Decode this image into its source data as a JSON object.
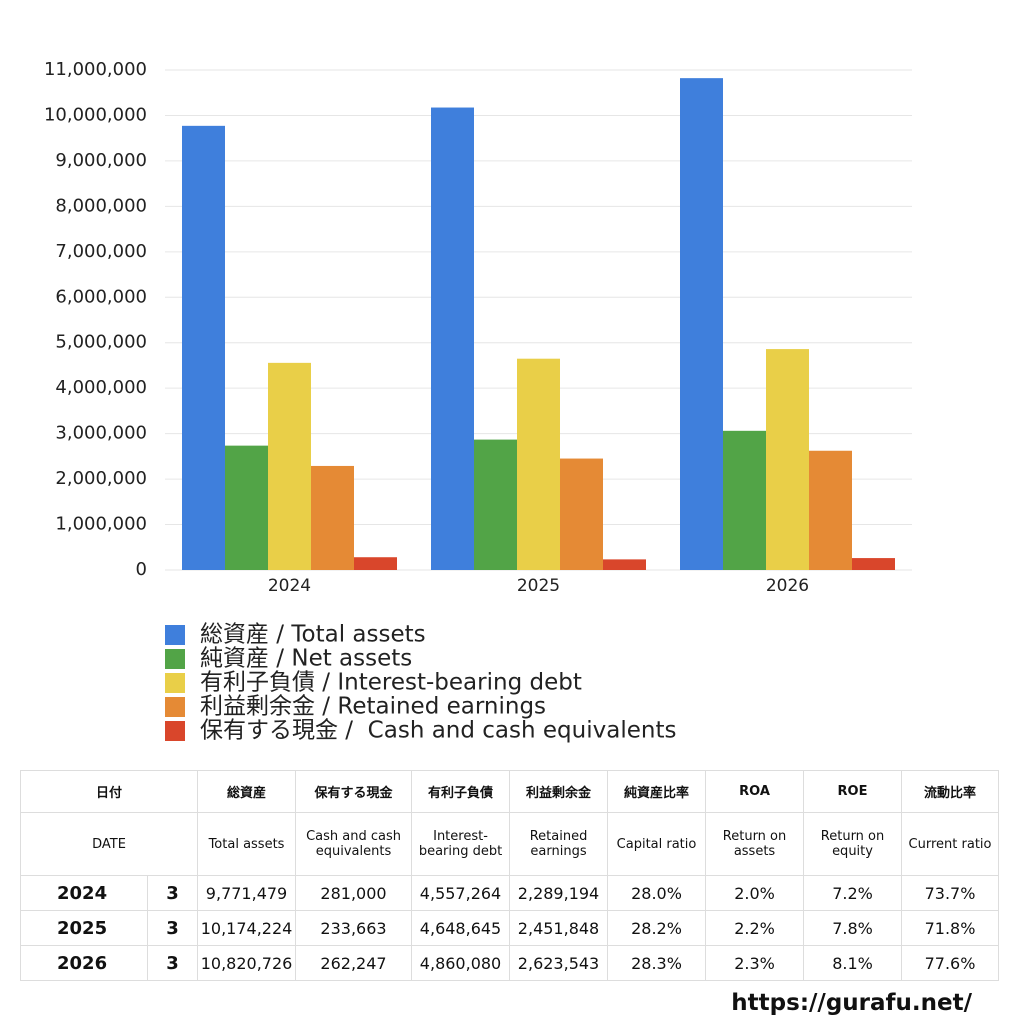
{
  "chart_data": {
    "type": "bar",
    "categories": [
      "2024",
      "2025",
      "2026"
    ],
    "series": [
      {
        "name": "総資産 / Total assets",
        "color": "#3f7fdc",
        "values": [
          9771479,
          10174224,
          10820726
        ]
      },
      {
        "name": "純資産 / Net assets",
        "color": "#52a447",
        "values": [
          2736000,
          2869000,
          3062000
        ]
      },
      {
        "name": "有利子負債 / Interest-bearing debt",
        "color": "#e9cf48",
        "values": [
          4557264,
          4648645,
          4860080
        ]
      },
      {
        "name": "利益剰余金 / Retained earnings",
        "color": "#e58a35",
        "values": [
          2289194,
          2451848,
          2623543
        ]
      },
      {
        "name": "保有する現金 /  Cash and cash equivalents",
        "color": "#d9462b",
        "values": [
          281000,
          233663,
          262247
        ]
      }
    ],
    "ylim": [
      0,
      11000000
    ],
    "yticks": [
      0,
      {
        "value": 1000000,
        "label": "1,000,000"
      },
      {
        "value": 2000000,
        "label": "2,000,000"
      },
      {
        "value": 3000000,
        "label": "3,000,000"
      },
      {
        "value": 4000000,
        "label": "4,000,000"
      },
      {
        "value": 5000000,
        "label": "5,000,000"
      },
      {
        "value": 6000000,
        "label": "6,000,000"
      },
      {
        "value": 7000000,
        "label": "7,000,000"
      },
      {
        "value": 8000000,
        "label": "8,000,000"
      },
      {
        "value": 9000000,
        "label": "9,000,000"
      },
      {
        "value": 10000000,
        "label": "10,000,000"
      },
      {
        "value": 11000000,
        "label": "11,000,000"
      }
    ],
    "grid": true
  },
  "table": {
    "header_ja": [
      "日付",
      "総資産",
      "保有する現金",
      "有利子負債",
      "利益剰余金",
      "純資産比率",
      "ROA",
      "ROE",
      "流動比率"
    ],
    "header_en": [
      "DATE",
      "Total assets",
      "Cash and cash equivalents",
      "Interest-bearing debt",
      "Retained earnings",
      "Capital ratio",
      "Return on assets",
      "Return on equity",
      "Current ratio"
    ],
    "rows": [
      [
        "2024",
        "3",
        "9,771,479",
        "281,000",
        "4,557,264",
        "2,289,194",
        "28.0%",
        "2.0%",
        "7.2%",
        "73.7%"
      ],
      [
        "2025",
        "3",
        "10,174,224",
        "233,663",
        "4,648,645",
        "2,451,848",
        "28.2%",
        "2.2%",
        "7.8%",
        "71.8%"
      ],
      [
        "2026",
        "3",
        "10,820,726",
        "262,247",
        "4,860,080",
        "2,623,543",
        "28.3%",
        "2.3%",
        "8.1%",
        "77.6%"
      ]
    ]
  },
  "footer": "https://gurafu.net/"
}
